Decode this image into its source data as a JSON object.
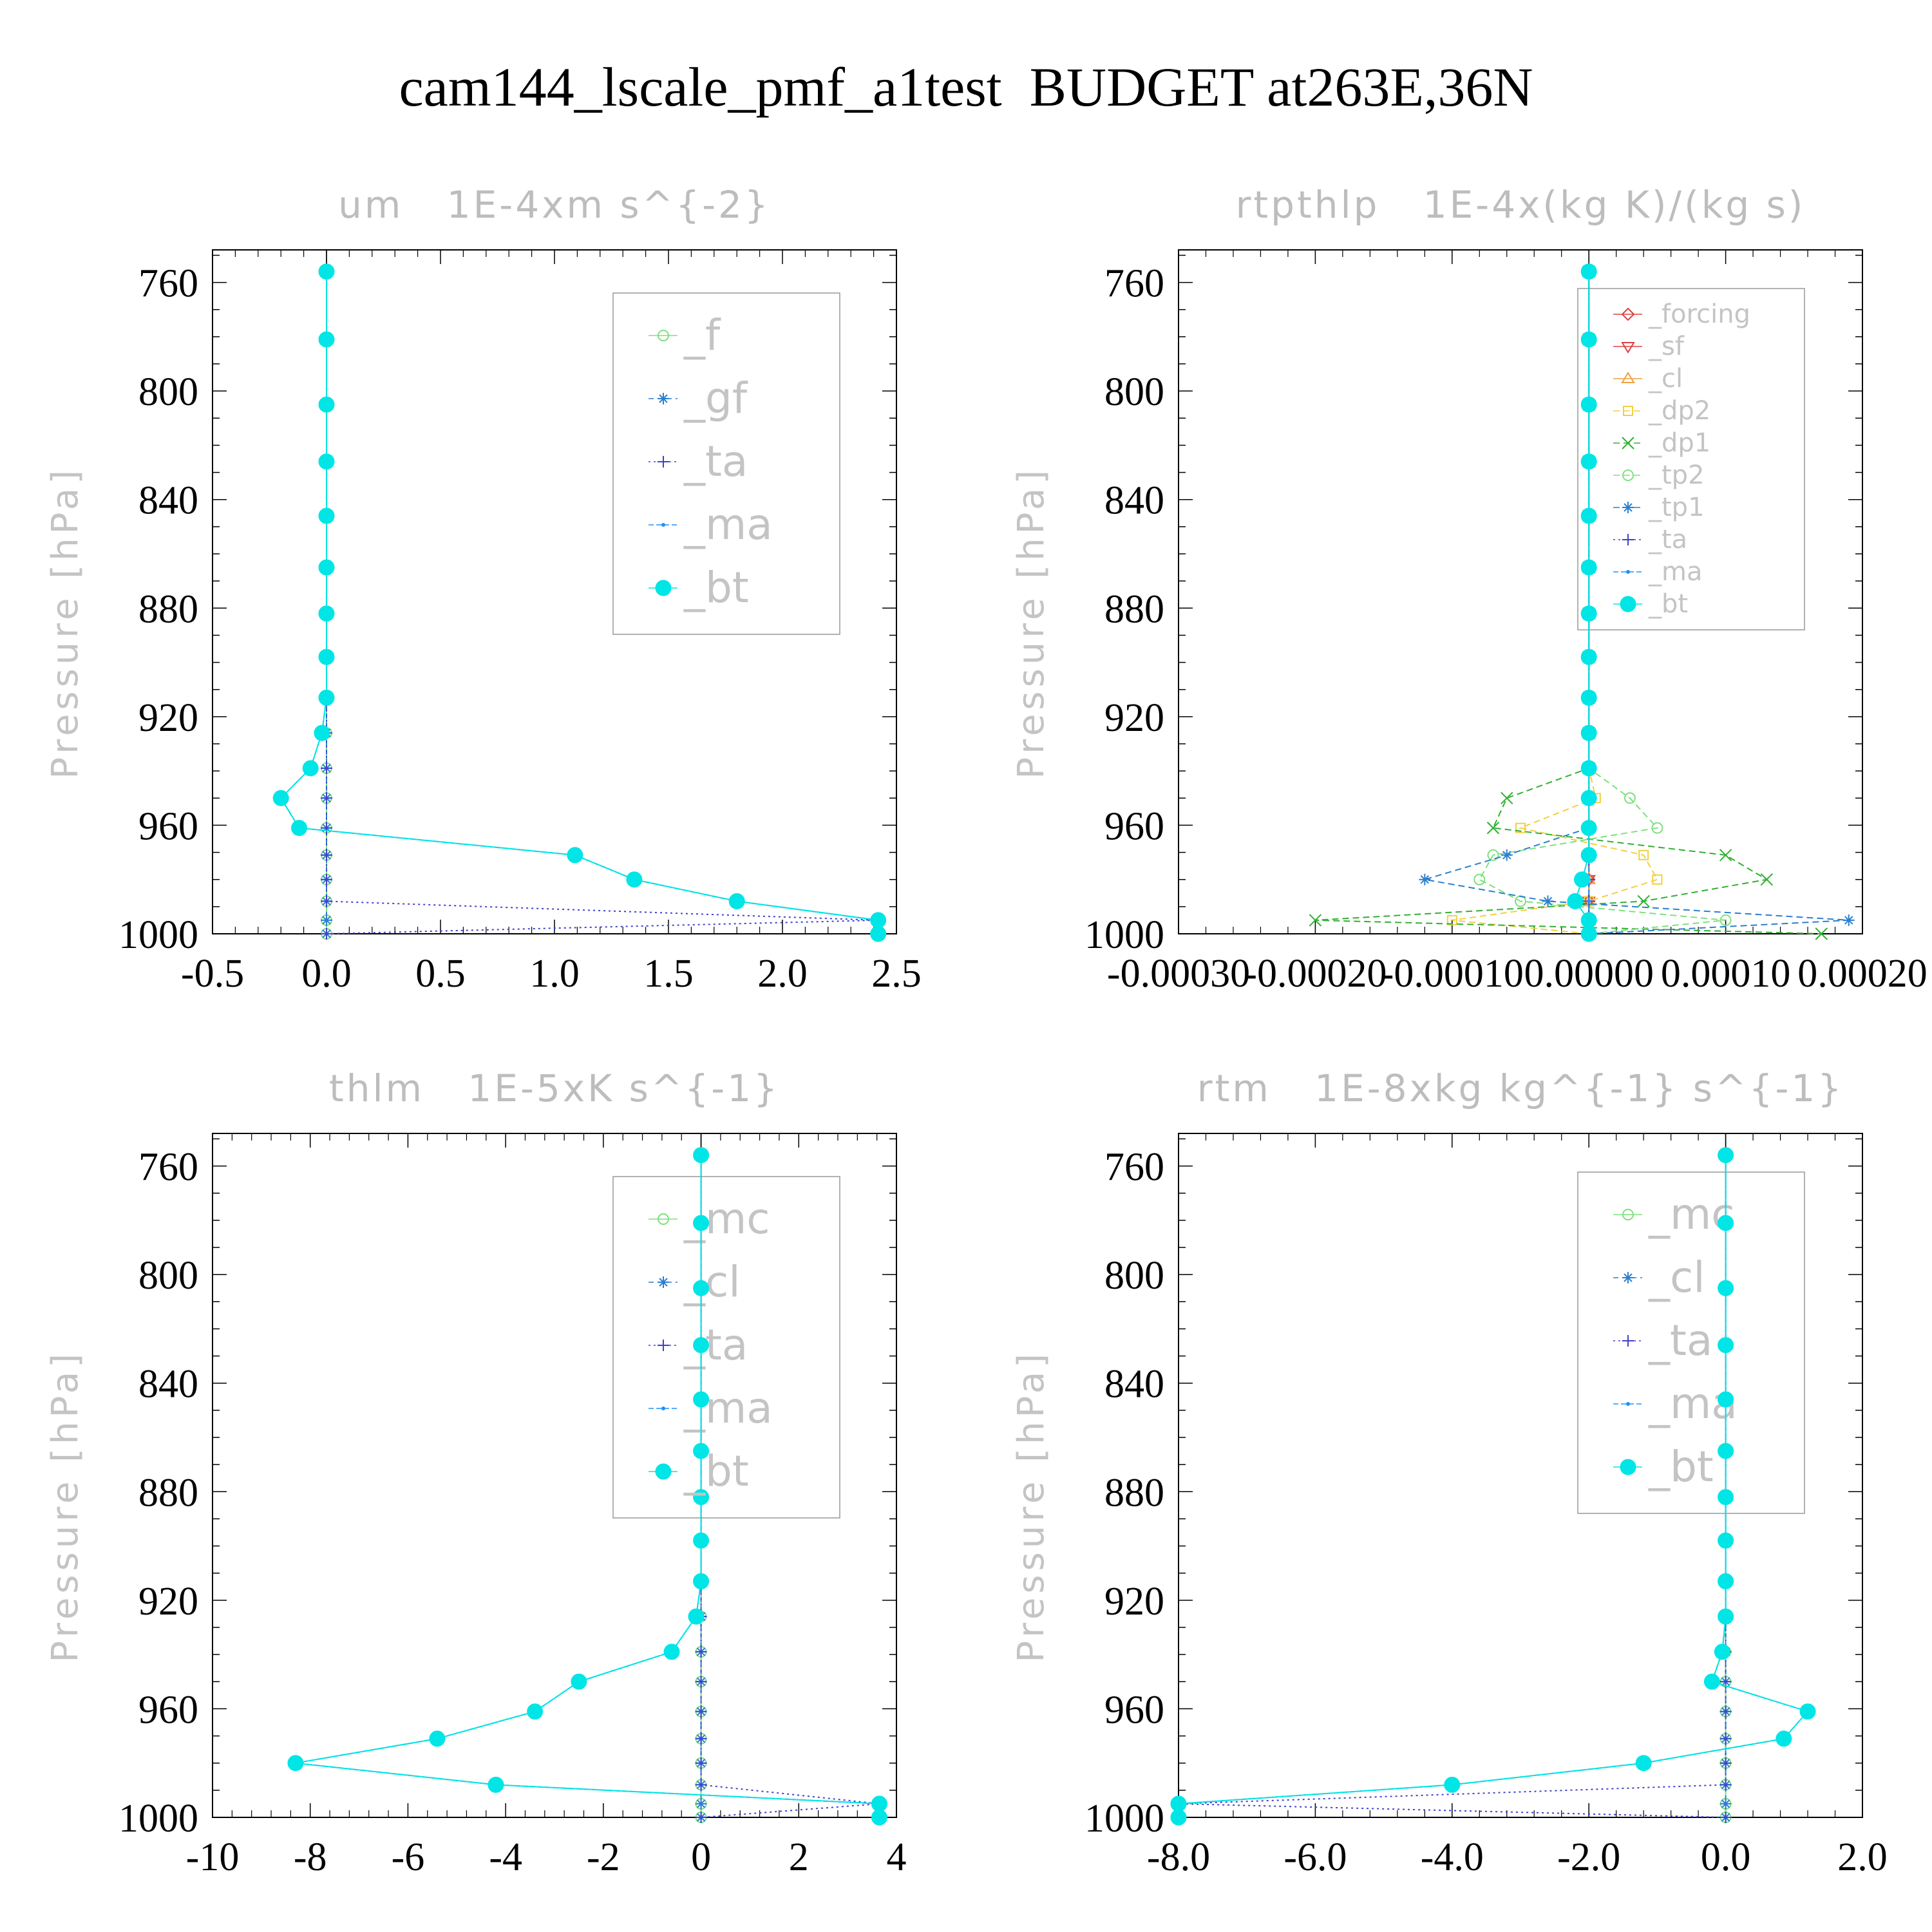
{
  "title": "cam144_lscale_pmf_a1test  BUDGET at263E,36N",
  "colors": {
    "f": "#7ee07e",
    "gf": "#2a7fd0",
    "ta": "#4040d0",
    "ma": "#1e90ff",
    "bt": "#00e5e5",
    "mc": "#7ee07e",
    "cl": "#2a7fd0",
    "forcing": "#e04040",
    "sf": "#e04040",
    "cl_orange": "#f0a040",
    "dp2": "#f0d040",
    "dp1": "#30b030",
    "tp2": "#7ee07e",
    "tp1": "#2a7fd0"
  },
  "chart_data": [
    {
      "type": "line",
      "title": "um   1E-4xm s^{-2}",
      "ylabel": "Pressure [hPa]",
      "ylim": [
        1000,
        748
      ],
      "yticks": [
        "760",
        "800",
        "840",
        "880",
        "920",
        "960",
        "1000"
      ],
      "xlim": [
        -0.5,
        2.5
      ],
      "xticks": [
        "-0.5",
        "0.0",
        "0.5",
        "1.0",
        "1.5",
        "2.0",
        "2.5"
      ],
      "legend": [
        "_f",
        "_gf",
        "_ta",
        "_ma",
        "_bt"
      ],
      "pressure": [
        756,
        781,
        805,
        826,
        846,
        865,
        882,
        898,
        913,
        926,
        939,
        950,
        961,
        971,
        980,
        988,
        995,
        1000
      ],
      "series": [
        {
          "name": "_f",
          "color_key": "f",
          "marker": "circle-open",
          "dash": "",
          "values": [
            0,
            0,
            0,
            0,
            0,
            0,
            0,
            0,
            0,
            0,
            0,
            0,
            0,
            0,
            0,
            0,
            0,
            0
          ]
        },
        {
          "name": "_gf",
          "color_key": "gf",
          "marker": "star",
          "dash": "8 6",
          "values": [
            0,
            0,
            0,
            0,
            0,
            0,
            0,
            0,
            0,
            0,
            0,
            0,
            0,
            0,
            0,
            0,
            0,
            0
          ]
        },
        {
          "name": "_ta",
          "color_key": "ta",
          "marker": "plus",
          "dash": "3 5",
          "values": [
            0,
            0,
            0,
            0,
            0,
            0,
            0,
            0,
            0,
            0,
            0,
            0,
            0,
            0,
            0,
            0,
            2.42,
            0
          ]
        },
        {
          "name": "_ma",
          "color_key": "ma",
          "marker": "dot",
          "dash": "8 4",
          "values": [
            0,
            0,
            0,
            0,
            0,
            0,
            0,
            0,
            0,
            -0.02,
            -0.07,
            -0.2,
            -0.12,
            1.09,
            1.35,
            1.8,
            2.42,
            2.42
          ]
        },
        {
          "name": "_bt",
          "color_key": "bt",
          "marker": "filled-circle",
          "dash": "",
          "values": [
            0,
            0,
            0,
            0,
            0,
            0,
            0,
            0,
            0,
            -0.02,
            -0.07,
            -0.2,
            -0.12,
            1.09,
            1.35,
            1.8,
            2.42,
            2.42
          ]
        }
      ]
    },
    {
      "type": "line",
      "title": "rtpthlp   1E-4x(kg K)/(kg s)",
      "ylabel": "Pressure [hPa]",
      "ylim": [
        1000,
        748
      ],
      "yticks": [
        "760",
        "800",
        "840",
        "880",
        "920",
        "960",
        "1000"
      ],
      "xlim": [
        -0.0003,
        0.0002
      ],
      "xticks": [
        "-0.00030",
        "-0.00020",
        "-0.00010",
        "0.00000",
        "0.00010",
        "0.00020"
      ],
      "legend": [
        "_forcing",
        "_sf",
        "_cl",
        "_dp2",
        "_dp1",
        "_tp2",
        "_tp1",
        "_ta",
        "_ma",
        "_bt"
      ],
      "pressure": [
        756,
        781,
        805,
        826,
        846,
        865,
        882,
        898,
        913,
        926,
        939,
        950,
        961,
        971,
        980,
        988,
        995,
        1000
      ],
      "series": [
        {
          "name": "_forcing",
          "color_key": "forcing",
          "marker": "diamond",
          "dash": "",
          "values": [
            0,
            0,
            0,
            0,
            0,
            0,
            0,
            0,
            0,
            0,
            0,
            0,
            0,
            0,
            0,
            0,
            0,
            0
          ]
        },
        {
          "name": "_sf",
          "color_key": "sf",
          "marker": "tri-down",
          "dash": "",
          "values": [
            0,
            0,
            0,
            0,
            0,
            0,
            0,
            0,
            0,
            0,
            0,
            0,
            0,
            0,
            0,
            0,
            0,
            0
          ]
        },
        {
          "name": "_cl",
          "color_key": "cl_orange",
          "marker": "tri-up",
          "dash": "",
          "values": [
            0,
            0,
            0,
            0,
            0,
            0,
            0,
            0,
            0,
            0,
            0,
            0,
            0,
            0,
            0,
            0,
            0,
            0
          ]
        },
        {
          "name": "_dp2",
          "color_key": "dp2",
          "marker": "square",
          "dash": "10 6",
          "values": [
            0,
            0,
            0,
            0,
            0,
            0,
            0,
            0,
            0,
            0,
            0,
            5e-06,
            -5e-05,
            4e-05,
            5e-05,
            0.0,
            -0.0001,
            0
          ]
        },
        {
          "name": "_dp1",
          "color_key": "dp1",
          "marker": "cross",
          "dash": "10 6",
          "values": [
            0,
            0,
            0,
            0,
            0,
            0,
            0,
            0,
            0,
            0,
            0,
            -6e-05,
            -7e-05,
            0.0001,
            0.00013,
            4e-05,
            -0.0002,
            0.00017
          ]
        },
        {
          "name": "_tp2",
          "color_key": "tp2",
          "marker": "circle-open",
          "dash": "10 6",
          "values": [
            0,
            0,
            0,
            0,
            0,
            0,
            0,
            0,
            0,
            0,
            0,
            3e-05,
            5e-05,
            -7e-05,
            -8e-05,
            -5e-05,
            0.0001,
            0
          ]
        },
        {
          "name": "_tp1",
          "color_key": "tp1",
          "marker": "star",
          "dash": "10 6",
          "values": [
            0,
            0,
            0,
            0,
            0,
            0,
            0,
            0,
            0,
            0,
            0,
            0,
            0,
            -6e-05,
            -0.00012,
            -3e-05,
            0.00019,
            0
          ]
        },
        {
          "name": "_ta",
          "color_key": "ta",
          "marker": "plus",
          "dash": "3 5",
          "values": [
            0,
            0,
            0,
            0,
            0,
            0,
            0,
            0,
            0,
            0,
            0,
            0,
            0,
            0,
            0,
            0,
            0,
            0
          ]
        },
        {
          "name": "_ma",
          "color_key": "ma",
          "marker": "dot",
          "dash": "8 4",
          "values": [
            0,
            0,
            0,
            0,
            0,
            0,
            0,
            0,
            0,
            0,
            0,
            0,
            0,
            0,
            0,
            0,
            0,
            0
          ]
        },
        {
          "name": "_bt",
          "color_key": "bt",
          "marker": "filled-circle",
          "dash": "",
          "values": [
            0,
            0,
            0,
            0,
            0,
            0,
            0,
            0,
            0,
            0,
            0,
            0,
            0,
            0,
            -5e-06,
            -1e-05,
            0,
            0
          ]
        }
      ]
    },
    {
      "type": "line",
      "title": "thlm   1E-5xK s^{-1}",
      "ylabel": "Pressure [hPa]",
      "ylim": [
        1000,
        748
      ],
      "yticks": [
        "760",
        "800",
        "840",
        "880",
        "920",
        "960",
        "1000"
      ],
      "xlim": [
        -10,
        4
      ],
      "xticks": [
        "-10",
        "-8",
        "-6",
        "-4",
        "-2",
        "0",
        "2",
        "4"
      ],
      "legend": [
        "_mc",
        "_cl",
        "_ta",
        "_ma",
        "_bt"
      ],
      "pressure": [
        756,
        781,
        805,
        826,
        846,
        865,
        882,
        898,
        913,
        926,
        939,
        950,
        961,
        971,
        980,
        988,
        995,
        1000
      ],
      "series": [
        {
          "name": "_mc",
          "color_key": "mc",
          "marker": "circle-open",
          "dash": "",
          "values": [
            0,
            0,
            0,
            0,
            0,
            0,
            0,
            0,
            0,
            0,
            0,
            0,
            0,
            0,
            0,
            0,
            0,
            0
          ]
        },
        {
          "name": "_cl",
          "color_key": "cl",
          "marker": "star",
          "dash": "8 6",
          "values": [
            0,
            0,
            0,
            0,
            0,
            0,
            0,
            0,
            0,
            0,
            0,
            0,
            0,
            0,
            0,
            0,
            0,
            0
          ]
        },
        {
          "name": "_ta",
          "color_key": "ta",
          "marker": "plus",
          "dash": "3 5",
          "values": [
            0,
            0,
            0,
            0,
            0,
            0,
            0,
            0,
            0,
            0,
            0,
            0,
            0,
            0,
            0,
            0,
            3.65,
            0
          ]
        },
        {
          "name": "_ma",
          "color_key": "ma",
          "marker": "dot",
          "dash": "8 4",
          "values": [
            0,
            0,
            0,
            0,
            0,
            0,
            0,
            0,
            0,
            -0.1,
            -0.6,
            -2.5,
            -3.4,
            -5.4,
            -8.3,
            -4.2,
            3.65,
            3.65
          ]
        },
        {
          "name": "_bt",
          "color_key": "bt",
          "marker": "filled-circle",
          "dash": "",
          "values": [
            0,
            0,
            0,
            0,
            0,
            0,
            0,
            0,
            0,
            -0.1,
            -0.6,
            -2.5,
            -3.4,
            -5.4,
            -8.3,
            -4.2,
            3.65,
            3.65
          ]
        }
      ]
    },
    {
      "type": "line",
      "title": "rtm   1E-8xkg kg^{-1} s^{-1}",
      "ylabel": "Pressure [hPa]",
      "ylim": [
        1000,
        748
      ],
      "yticks": [
        "760",
        "800",
        "840",
        "880",
        "920",
        "960",
        "1000"
      ],
      "xlim": [
        -8,
        2
      ],
      "xticks": [
        "-8.0",
        "-6.0",
        "-4.0",
        "-2.0",
        "0.0",
        "2.0"
      ],
      "legend": [
        "_mc",
        "_cl",
        "_ta",
        "_ma",
        "_bt"
      ],
      "pressure": [
        756,
        781,
        805,
        826,
        846,
        865,
        882,
        898,
        913,
        926,
        939,
        950,
        961,
        971,
        980,
        988,
        995,
        1000
      ],
      "series": [
        {
          "name": "_mc",
          "color_key": "mc",
          "marker": "circle-open",
          "dash": "",
          "values": [
            0,
            0,
            0,
            0,
            0,
            0,
            0,
            0,
            0,
            0,
            0,
            0,
            0,
            0,
            0,
            0,
            0,
            0
          ]
        },
        {
          "name": "_cl",
          "color_key": "cl",
          "marker": "star",
          "dash": "8 6",
          "values": [
            0,
            0,
            0,
            0,
            0,
            0,
            0,
            0,
            0,
            0,
            0,
            0,
            0,
            0,
            0,
            0,
            0,
            0
          ]
        },
        {
          "name": "_ta",
          "color_key": "ta",
          "marker": "plus",
          "dash": "3 5",
          "values": [
            0,
            0,
            0,
            0,
            0,
            0,
            0,
            0,
            0,
            0,
            0,
            0,
            0,
            0,
            0,
            0,
            -8.0,
            0
          ]
        },
        {
          "name": "_ma",
          "color_key": "ma",
          "marker": "dot",
          "dash": "8 4",
          "values": [
            0,
            0,
            0,
            0,
            0,
            0,
            0,
            0,
            0,
            0,
            -0.05,
            -0.2,
            1.2,
            0.85,
            -1.2,
            -4.0,
            -8.0,
            -8.0
          ]
        },
        {
          "name": "_bt",
          "color_key": "bt",
          "marker": "filled-circle",
          "dash": "",
          "values": [
            0,
            0,
            0,
            0,
            0,
            0,
            0,
            0,
            0,
            0,
            -0.05,
            -0.2,
            1.2,
            0.85,
            -1.2,
            -4.0,
            -8.0,
            -8.0
          ]
        }
      ]
    }
  ]
}
